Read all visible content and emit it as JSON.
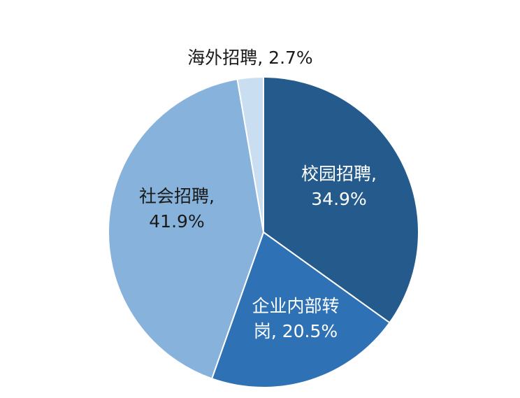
{
  "chart_data": {
    "type": "pie",
    "title": "",
    "slices": [
      {
        "name": "校园招聘",
        "value": 34.9,
        "color": "#255a8c",
        "label_lines": [
          "校园招聘,",
          "34.9%"
        ],
        "label_color": "#ffffff"
      },
      {
        "name": "企业内部转岗",
        "value": 20.5,
        "color": "#2e72b5",
        "label_lines": [
          "企业内部转",
          "岗, 20.5%"
        ],
        "label_color": "#ffffff"
      },
      {
        "name": "社会招聘",
        "value": 41.9,
        "color": "#86b2db",
        "label_lines": [
          "社会招聘,",
          "41.9%"
        ],
        "label_color": "#1a1a1a"
      },
      {
        "name": "海外招聘",
        "value": 2.7,
        "color": "#c9def1",
        "label_lines": [
          "海外招聘, 2.7%"
        ],
        "label_color": "#1a1a1a"
      }
    ]
  }
}
